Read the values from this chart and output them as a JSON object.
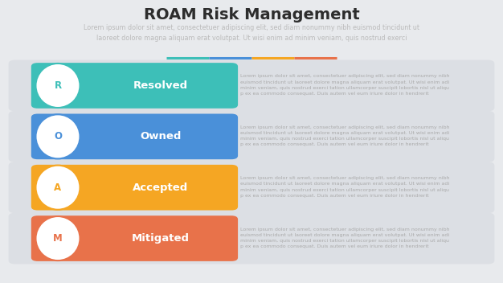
{
  "title": "ROAM Risk Management",
  "subtitle": "Lorem ipsum dolor sit amet, consectetuer adipiscing elit, sed diam nonummy nibh euismod tincidunt ut\nlaoreet dolore magna aliquam erat volutpat. Ut wisi enim ad minim veniam, quis nostrud exerci",
  "divider_colors": [
    "#3dbfb8",
    "#4a90d9",
    "#f5a623",
    "#e8724a"
  ],
  "background_color": "#e8eaed",
  "items": [
    {
      "letter": "R",
      "label": "Resolved",
      "color": "#3dbfb8",
      "text": "Lorem ipsum dolor sit amet, consectetuer adipiscing elit, sed diam nonummy nibh\neuismod tincidunt ut laoreet dolore magna aliquam erat volutpat. Ut wisi enim adi\nminim veniam, quis nostrud exerci tation ullamcorper suscipit lobortis nisl ut aliqu\np ex ea commodo consequat. Duis autem vel eum iriure dolor in hendrerit"
    },
    {
      "letter": "O",
      "label": "Owned",
      "color": "#4a90d9",
      "text": "Lorem ipsum dolor sit amet, consectetuer adipiscing elit, sed diam nonummy nibh\neuismod tincidunt ut laoreet dolore magna aliquam erat volutpat. Ut wisi enim adi\nminim veniam, quis nostrud exerci tation ullamcorper suscipit lobortis nisl ut aliqu\np ex ea commodo consequat. Duis autem vel eum iriure dolor in hendrerit"
    },
    {
      "letter": "A",
      "label": "Accepted",
      "color": "#f5a623",
      "text": "Lorem ipsum dolor sit amet, consectetuer adipiscing elit, sed diam nonummy nibh\neuismod tincidunt ut laoreet dolore magna aliquam erat volutpat. Ut wisi enim adi\nminim veniam, quis nostrud exerci tation ullamcorper suscipit lobortis nisl ut aliqu\np ex ea commodo consequat. Duis autem vel eum iriure dolor in hendrerit"
    },
    {
      "letter": "M",
      "label": "Mitigated",
      "color": "#e8724a",
      "text": "Lorem ipsum dolor sit amet, consectetuer adipiscing elit, sed diam nonummy nibh\neuismod tincidunt ut laoreet dolore magna aliquam erat volutpat. Ut wisi enim adi\nminim veniam, quis nostrud exerci tation ullamcorper suscipit lobortis nisl ut aliqu\np ex ea commodo consequat. Duis autem vel eum iriure dolor in hendrerit"
    }
  ],
  "outer_box_color": "#dcdfe4",
  "text_color": "#aaaaaa",
  "label_color": "#ffffff",
  "title_color": "#2d2d2d",
  "subtitle_color": "#bbbbbb",
  "title_fontsize": 14,
  "subtitle_fontsize": 5.8,
  "label_fontsize": 9.5,
  "letter_fontsize": 8.5,
  "body_fontsize": 4.5
}
